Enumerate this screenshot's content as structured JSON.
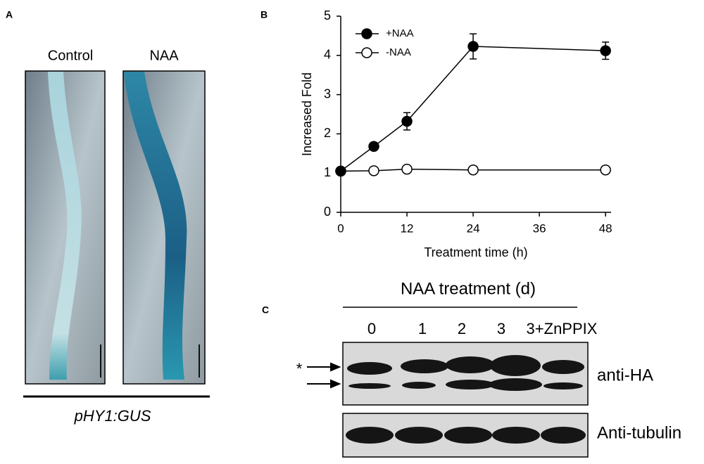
{
  "panel_labels": [
    "A",
    "B",
    "C"
  ],
  "panel_a": {
    "columns": [
      "Control",
      "NAA"
    ],
    "caption": "pHY1:GUS"
  },
  "chart_data": {
    "type": "line",
    "xlabel": "Treatment time (h)",
    "ylabel": "Increased Fold",
    "xlim": [
      0,
      49
    ],
    "ylim": [
      0,
      5
    ],
    "xticks": [
      0,
      12,
      24,
      36,
      48
    ],
    "yticks": [
      0,
      1,
      2,
      3,
      4,
      5
    ],
    "legend": "upper left",
    "series": [
      {
        "name": "+NAA",
        "color": "#000000",
        "marker_fill": "#000000",
        "x": [
          0,
          6,
          12,
          24,
          48
        ],
        "values": [
          1.05,
          1.68,
          2.32,
          4.23,
          4.12
        ],
        "errors": [
          0.04,
          0.06,
          0.22,
          0.32,
          0.22
        ]
      },
      {
        "name": "-NAA",
        "color": "#000000",
        "marker_fill": "#ffffff",
        "x": [
          0,
          6,
          12,
          24,
          48
        ],
        "values": [
          1.05,
          1.06,
          1.1,
          1.08,
          1.08
        ],
        "errors": [
          0.03,
          0.03,
          0.03,
          0.03,
          0.03
        ]
      }
    ]
  },
  "panel_c": {
    "header": "NAA treatment (d)",
    "lanes": [
      "0",
      "1",
      "2",
      "3",
      "3+ZnPPIX"
    ],
    "blots": [
      "anti-HA",
      "Anti-tubulin"
    ],
    "marker": "*"
  }
}
